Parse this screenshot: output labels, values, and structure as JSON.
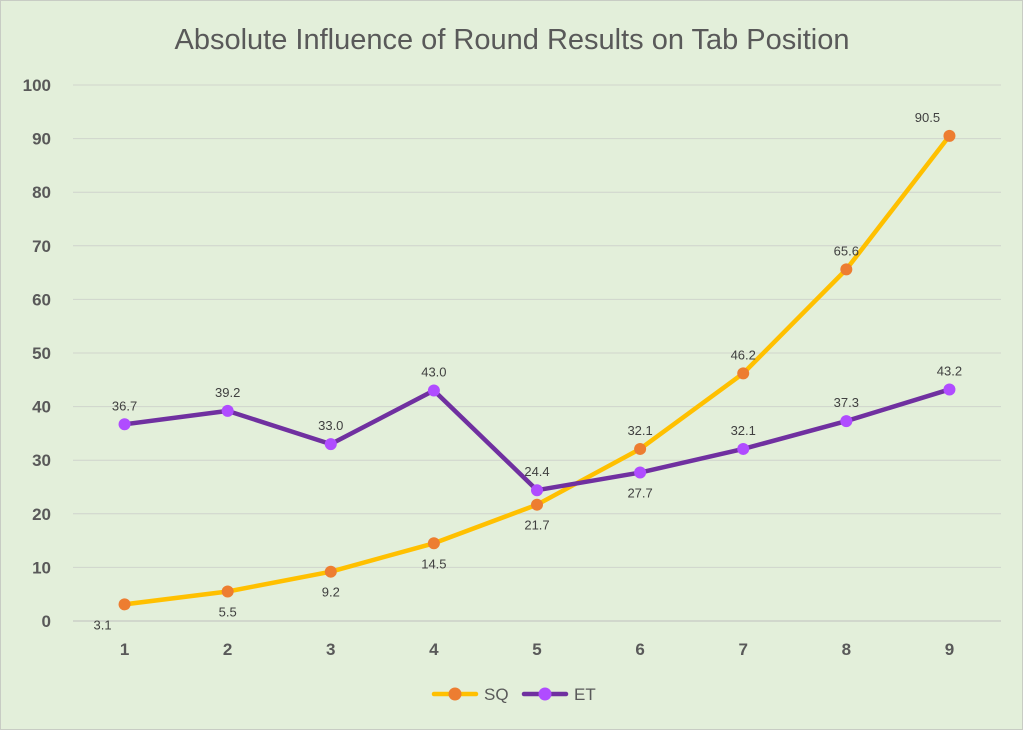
{
  "chart_data": {
    "type": "line",
    "title": "Absolute Influence of Round Results on Tab Position",
    "xlabel": "",
    "ylabel": "",
    "categories": [
      "1",
      "2",
      "3",
      "4",
      "5",
      "6",
      "7",
      "8",
      "9"
    ],
    "ylim": [
      0,
      100
    ],
    "yticks": [
      "0",
      "10",
      "20",
      "30",
      "40",
      "50",
      "60",
      "70",
      "80",
      "90",
      "100"
    ],
    "grid": true,
    "legend": "bottom",
    "series": [
      {
        "name": "SQ",
        "line_color": "#ffc000",
        "marker_color": "#ed7d31",
        "values": [
          3.1,
          5.5,
          9.2,
          14.5,
          21.7,
          32.1,
          46.2,
          65.6,
          90.5
        ],
        "labels": [
          "3.1",
          "5.5",
          "9.2",
          "14.5",
          "21.7",
          "32.1",
          "46.2",
          "65.6",
          "90.5"
        ],
        "label_pos": [
          "below-left",
          "below",
          "below",
          "below",
          "below",
          "above",
          "above",
          "above",
          "above-left"
        ]
      },
      {
        "name": "ET",
        "line_color": "#7030a0",
        "marker_color": "#b04cff",
        "values": [
          36.7,
          39.2,
          33.0,
          43.0,
          24.4,
          27.7,
          32.1,
          37.3,
          43.2
        ],
        "labels": [
          "36.7",
          "39.2",
          "33.0",
          "43.0",
          "24.4",
          "27.7",
          "32.1",
          "37.3",
          "43.2"
        ],
        "label_pos": [
          "above",
          "above",
          "above",
          "above",
          "above",
          "below",
          "above",
          "above",
          "above"
        ]
      }
    ]
  }
}
